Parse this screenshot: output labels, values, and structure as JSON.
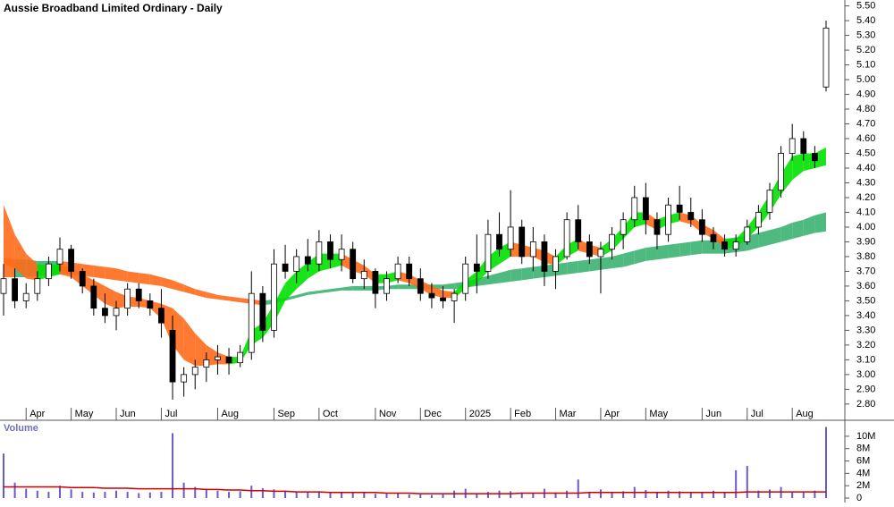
{
  "chart_data": {
    "type": "candlestick",
    "title": "Aussie Broadband Limited Ordinary - Daily",
    "categories": [
      null,
      null,
      "Apr",
      null,
      null,
      null,
      "May",
      null,
      null,
      null,
      "Jun",
      null,
      null,
      null,
      "Jul",
      null,
      null,
      null,
      null,
      "Aug",
      null,
      null,
      null,
      null,
      "Sep",
      null,
      null,
      null,
      "Oct",
      null,
      null,
      null,
      null,
      "Nov",
      null,
      null,
      null,
      "Dec",
      null,
      null,
      null,
      "2025",
      null,
      null,
      null,
      "Feb",
      null,
      null,
      null,
      "Mar",
      null,
      null,
      null,
      "Apr",
      null,
      null,
      null,
      "May",
      null,
      null,
      null,
      null,
      "Jun",
      null,
      null,
      null,
      "Jul",
      null,
      null,
      null,
      "Aug",
      null,
      null,
      null
    ],
    "open": [
      3.55,
      3.65,
      3.5,
      3.55,
      3.65,
      3.75,
      3.85,
      3.7,
      3.6,
      3.45,
      3.4,
      3.45,
      3.58,
      3.5,
      3.45,
      3.3,
      2.95,
      3.0,
      3.05,
      3.1,
      3.12,
      3.08,
      3.15,
      3.55,
      3.3,
      3.75,
      3.7,
      3.8,
      3.75,
      3.9,
      3.78,
      3.85,
      3.65,
      3.7,
      3.55,
      3.65,
      3.75,
      3.65,
      3.55,
      3.52,
      3.5,
      3.55,
      3.75,
      3.7,
      3.95,
      3.85,
      4.0,
      3.8,
      3.9,
      3.7,
      3.8,
      4.05,
      3.9,
      3.8,
      3.85,
      3.95,
      4.05,
      4.2,
      4.05,
      3.95,
      4.15,
      4.1,
      4.05,
      3.95,
      3.9,
      3.85,
      3.9,
      4.0,
      4.1,
      4.25,
      4.5,
      4.6,
      4.5,
      4.95
    ],
    "high": [
      3.75,
      3.72,
      3.62,
      3.7,
      3.8,
      3.93,
      3.88,
      3.72,
      3.65,
      3.55,
      3.5,
      3.62,
      3.62,
      3.55,
      3.58,
      3.4,
      3.05,
      3.1,
      3.15,
      3.2,
      3.18,
      3.2,
      3.7,
      3.6,
      3.85,
      3.88,
      3.85,
      3.92,
      3.98,
      3.95,
      3.95,
      3.9,
      3.78,
      3.72,
      3.7,
      3.8,
      3.8,
      3.72,
      3.62,
      3.6,
      3.58,
      3.8,
      3.95,
      4.05,
      4.1,
      4.25,
      4.05,
      4.0,
      3.95,
      3.85,
      4.1,
      4.15,
      3.95,
      3.9,
      4.0,
      4.1,
      4.28,
      4.3,
      4.1,
      4.2,
      4.28,
      4.2,
      4.12,
      4.0,
      3.95,
      3.95,
      4.05,
      4.15,
      4.3,
      4.55,
      4.7,
      4.65,
      4.55,
      5.4
    ],
    "low": [
      3.4,
      3.45,
      3.45,
      3.5,
      3.6,
      3.7,
      3.65,
      3.55,
      3.4,
      3.35,
      3.3,
      3.4,
      3.45,
      3.4,
      3.25,
      2.83,
      2.85,
      2.9,
      2.95,
      3.0,
      3.0,
      3.05,
      3.1,
      3.22,
      3.25,
      3.65,
      3.62,
      3.7,
      3.7,
      3.72,
      3.7,
      3.62,
      3.58,
      3.45,
      3.5,
      3.62,
      3.6,
      3.5,
      3.45,
      3.45,
      3.35,
      3.5,
      3.55,
      3.65,
      3.8,
      3.8,
      3.75,
      3.7,
      3.6,
      3.58,
      3.78,
      3.85,
      3.75,
      3.55,
      3.78,
      3.85,
      4.0,
      3.95,
      3.85,
      3.9,
      4.05,
      4.0,
      3.9,
      3.85,
      3.8,
      3.8,
      3.88,
      3.95,
      4.05,
      4.2,
      4.45,
      4.45,
      4.4,
      4.92
    ],
    "close": [
      3.65,
      3.5,
      3.55,
      3.65,
      3.75,
      3.85,
      3.7,
      3.6,
      3.45,
      3.4,
      3.45,
      3.58,
      3.5,
      3.45,
      3.35,
      2.95,
      3.0,
      3.05,
      3.1,
      3.12,
      3.08,
      3.15,
      3.55,
      3.3,
      3.75,
      3.7,
      3.8,
      3.75,
      3.9,
      3.78,
      3.85,
      3.65,
      3.7,
      3.55,
      3.65,
      3.75,
      3.65,
      3.55,
      3.52,
      3.5,
      3.55,
      3.75,
      3.7,
      3.95,
      3.85,
      4.0,
      3.8,
      3.9,
      3.7,
      3.8,
      4.05,
      3.9,
      3.8,
      3.85,
      3.95,
      4.05,
      4.2,
      4.05,
      3.95,
      4.15,
      4.1,
      4.05,
      3.95,
      3.9,
      3.85,
      3.9,
      4.0,
      4.1,
      4.25,
      4.5,
      4.6,
      4.5,
      4.45,
      5.35
    ],
    "short_band": {
      "lower": [
        3.75,
        3.72,
        3.65,
        3.64,
        3.66,
        3.68,
        3.66,
        3.6,
        3.54,
        3.48,
        3.45,
        3.46,
        3.46,
        3.45,
        3.38,
        3.2,
        3.1,
        3.06,
        3.06,
        3.07,
        3.07,
        3.08,
        3.2,
        3.25,
        3.35,
        3.5,
        3.58,
        3.65,
        3.7,
        3.72,
        3.74,
        3.7,
        3.68,
        3.62,
        3.62,
        3.64,
        3.62,
        3.58,
        3.54,
        3.52,
        3.52,
        3.58,
        3.62,
        3.7,
        3.75,
        3.8,
        3.8,
        3.8,
        3.76,
        3.74,
        3.8,
        3.84,
        3.82,
        3.8,
        3.84,
        3.92,
        4.0,
        4.02,
        3.98,
        4.02,
        4.04,
        4.02,
        3.96,
        3.92,
        3.86,
        3.86,
        3.92,
        4.0,
        4.1,
        4.22,
        4.32,
        4.38,
        4.4,
        4.42
      ],
      "upper": [
        4.15,
        3.95,
        3.82,
        3.75,
        3.74,
        3.75,
        3.72,
        3.68,
        3.64,
        3.6,
        3.56,
        3.53,
        3.52,
        3.5,
        3.48,
        3.45,
        3.38,
        3.28,
        3.2,
        3.15,
        3.12,
        3.12,
        3.3,
        3.35,
        3.48,
        3.62,
        3.7,
        3.76,
        3.82,
        3.82,
        3.82,
        3.78,
        3.74,
        3.68,
        3.68,
        3.7,
        3.68,
        3.64,
        3.6,
        3.57,
        3.56,
        3.64,
        3.7,
        3.8,
        3.86,
        3.9,
        3.88,
        3.86,
        3.84,
        3.8,
        3.88,
        3.92,
        3.88,
        3.86,
        3.92,
        4.0,
        4.1,
        4.1,
        4.05,
        4.08,
        4.1,
        4.08,
        4.02,
        3.98,
        3.92,
        3.92,
        4.0,
        4.1,
        4.22,
        4.36,
        4.48,
        4.5,
        4.5,
        4.54
      ]
    },
    "long_band": {
      "lower": [
        3.66,
        3.66,
        3.66,
        3.67,
        3.67,
        3.68,
        3.68,
        3.67,
        3.66,
        3.65,
        3.64,
        3.63,
        3.62,
        3.61,
        3.6,
        3.58,
        3.56,
        3.54,
        3.52,
        3.51,
        3.5,
        3.49,
        3.48,
        3.47,
        3.48,
        3.5,
        3.52,
        3.54,
        3.55,
        3.56,
        3.57,
        3.57,
        3.57,
        3.57,
        3.58,
        3.58,
        3.58,
        3.58,
        3.58,
        3.58,
        3.58,
        3.59,
        3.6,
        3.61,
        3.62,
        3.63,
        3.64,
        3.65,
        3.66,
        3.67,
        3.68,
        3.69,
        3.7,
        3.71,
        3.72,
        3.73,
        3.75,
        3.77,
        3.78,
        3.79,
        3.8,
        3.81,
        3.82,
        3.82,
        3.82,
        3.83,
        3.84,
        3.86,
        3.88,
        3.9,
        3.92,
        3.94,
        3.96,
        3.97
      ],
      "upper": [
        3.79,
        3.78,
        3.78,
        3.77,
        3.77,
        3.77,
        3.76,
        3.75,
        3.74,
        3.73,
        3.72,
        3.7,
        3.69,
        3.68,
        3.66,
        3.64,
        3.61,
        3.58,
        3.56,
        3.54,
        3.53,
        3.52,
        3.51,
        3.5,
        3.51,
        3.52,
        3.54,
        3.56,
        3.57,
        3.58,
        3.59,
        3.6,
        3.6,
        3.6,
        3.6,
        3.61,
        3.61,
        3.61,
        3.61,
        3.61,
        3.62,
        3.63,
        3.65,
        3.67,
        3.69,
        3.71,
        3.72,
        3.73,
        3.74,
        3.75,
        3.76,
        3.77,
        3.78,
        3.79,
        3.8,
        3.82,
        3.84,
        3.86,
        3.87,
        3.88,
        3.89,
        3.9,
        3.91,
        3.91,
        3.92,
        3.93,
        3.94,
        3.96,
        3.98,
        4.0,
        4.03,
        4.05,
        4.08,
        4.1
      ]
    },
    "band_colors": {
      "short_up": "#00e000",
      "long_up": "#3cb371",
      "down": "#ff6a1a"
    },
    "ylim": [
      2.69,
      5.54
    ],
    "yticks": [
      {
        "value": 2.8,
        "label": "2.80"
      },
      {
        "value": 2.9,
        "label": "2.90"
      },
      {
        "value": 3.0,
        "label": "3.00"
      },
      {
        "value": 3.1,
        "label": "3.10"
      },
      {
        "value": 3.2,
        "label": "3.20"
      },
      {
        "value": 3.3,
        "label": "3.30"
      },
      {
        "value": 3.4,
        "label": "3.40"
      },
      {
        "value": 3.5,
        "label": "3.50"
      },
      {
        "value": 3.6,
        "label": "3.60"
      },
      {
        "value": 3.7,
        "label": "3.70"
      },
      {
        "value": 3.8,
        "label": "3.80"
      },
      {
        "value": 3.9,
        "label": "3.90"
      },
      {
        "value": 4.0,
        "label": "4.00"
      },
      {
        "value": 4.1,
        "label": "4.10"
      },
      {
        "value": 4.2,
        "label": "4.20"
      },
      {
        "value": 4.3,
        "label": "4.30"
      },
      {
        "value": 4.4,
        "label": "4.40"
      },
      {
        "value": 4.5,
        "label": "4.50"
      },
      {
        "value": 4.6,
        "label": "4.60"
      },
      {
        "value": 4.7,
        "label": "4.70"
      },
      {
        "value": 4.8,
        "label": "4.80"
      },
      {
        "value": 4.9,
        "label": "4.90"
      },
      {
        "value": 5.0,
        "label": "5.00"
      },
      {
        "value": 5.1,
        "label": "5.10"
      },
      {
        "value": 5.2,
        "label": "5.20"
      },
      {
        "value": 5.3,
        "label": "5.30"
      },
      {
        "value": 5.4,
        "label": "5.40"
      },
      {
        "value": 5.5,
        "label": "5.50"
      }
    ],
    "volume": {
      "label": "Volume",
      "color": "#6a5acd",
      "ma_color": "#cc0000",
      "values": [
        7.2,
        2.5,
        1.5,
        1.2,
        1.0,
        2.0,
        1.4,
        1.0,
        0.9,
        1.0,
        1.2,
        1.0,
        0.8,
        0.9,
        1.0,
        10.5,
        2.5,
        1.8,
        1.5,
        1.2,
        1.0,
        1.1,
        2.0,
        1.6,
        1.4,
        1.2,
        1.0,
        1.0,
        1.1,
        0.9,
        0.8,
        0.9,
        0.8,
        0.7,
        0.7,
        0.8,
        0.6,
        0.6,
        0.5,
        0.6,
        1.2,
        1.5,
        0.8,
        1.0,
        1.2,
        1.1,
        0.9,
        0.8,
        1.5,
        0.9,
        1.2,
        3.0,
        1.0,
        1.4,
        1.0,
        1.1,
        1.8,
        1.3,
        1.0,
        1.2,
        1.1,
        1.0,
        0.9,
        1.2,
        1.0,
        4.5,
        5.2,
        1.2,
        1.4,
        1.8,
        1.0,
        0.9,
        1.2,
        11.5
      ],
      "ma": [
        1.8,
        1.8,
        1.8,
        1.8,
        1.8,
        1.8,
        1.7,
        1.7,
        1.7,
        1.6,
        1.6,
        1.6,
        1.5,
        1.5,
        1.5,
        1.5,
        1.5,
        1.5,
        1.4,
        1.4,
        1.3,
        1.3,
        1.2,
        1.2,
        1.1,
        1.1,
        1.0,
        1.0,
        1.0,
        0.9,
        0.9,
        0.9,
        0.9,
        0.9,
        0.8,
        0.8,
        0.8,
        0.7,
        0.7,
        0.7,
        0.7,
        0.7,
        0.7,
        0.7,
        0.7,
        0.7,
        0.8,
        0.8,
        0.8,
        0.8,
        0.8,
        0.8,
        0.9,
        0.9,
        0.9,
        0.9,
        0.9,
        0.9,
        0.9,
        0.9,
        0.9,
        0.9,
        0.9,
        0.9,
        0.9,
        0.9,
        1.0,
        1.0,
        1.0,
        1.0,
        1.0,
        1.0,
        1.0,
        1.0
      ],
      "ylim": [
        0,
        12.3
      ],
      "yticks": [
        0,
        {
          "value": 2,
          "label": "2M"
        },
        {
          "value": 4,
          "label": "4M"
        },
        {
          "value": 6,
          "label": "6M"
        },
        {
          "value": 8,
          "label": "8M"
        },
        {
          "value": 10,
          "label": "10M"
        }
      ]
    }
  }
}
